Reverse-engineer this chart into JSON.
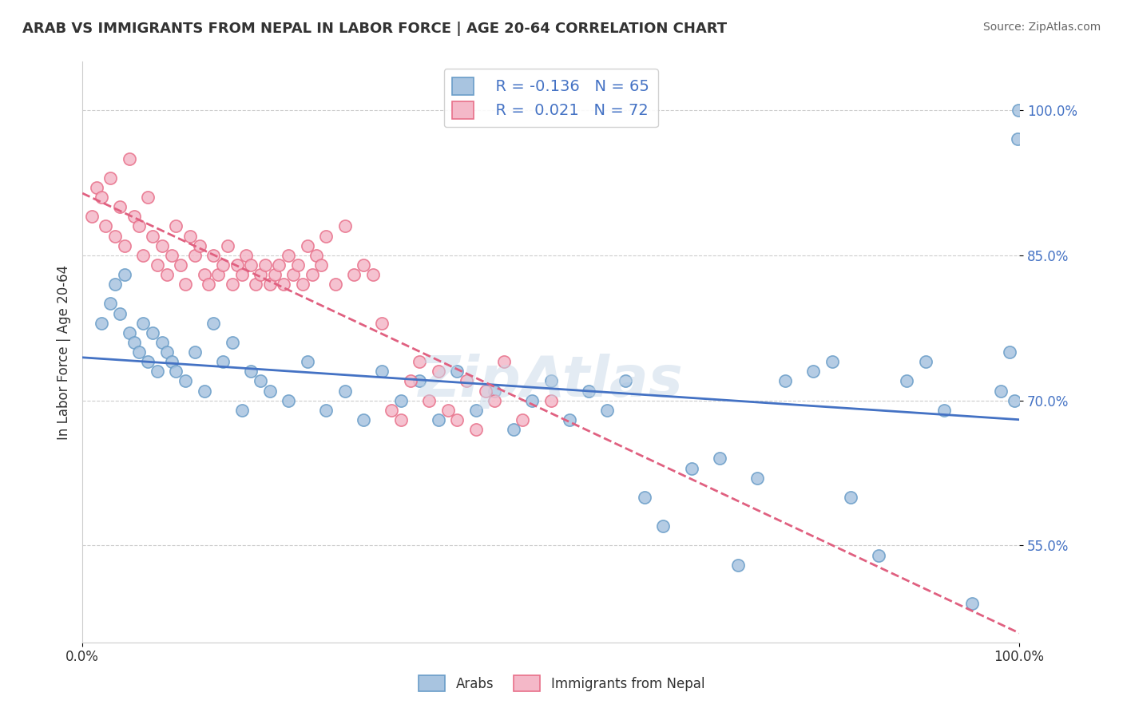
{
  "title": "ARAB VS IMMIGRANTS FROM NEPAL IN LABOR FORCE | AGE 20-64 CORRELATION CHART",
  "source": "Source: ZipAtlas.com",
  "xlabel": "",
  "ylabel": "In Labor Force | Age 20-64",
  "xlim": [
    0.0,
    100.0
  ],
  "ylim": [
    45.0,
    105.0
  ],
  "yticks": [
    55.0,
    70.0,
    85.0,
    100.0
  ],
  "xticks": [
    0.0,
    100.0
  ],
  "xtick_labels": [
    "0.0%",
    "100.0%"
  ],
  "ytick_labels": [
    "55.0%",
    "70.0%",
    "85.0%",
    "100.0%"
  ],
  "arab_R": "-0.136",
  "arab_N": "65",
  "nepal_R": "0.021",
  "nepal_N": "72",
  "arab_color": "#a8c4e0",
  "arab_edge_color": "#6a9dc8",
  "nepal_color": "#f4b8c8",
  "nepal_edge_color": "#e8708a",
  "arab_line_color": "#4472c4",
  "nepal_line_color": "#e06080",
  "watermark": "ZipAtlas",
  "background_color": "#ffffff",
  "grid_color": "#cccccc",
  "arab_x": [
    2.0,
    3.0,
    3.5,
    4.0,
    4.5,
    5.0,
    5.5,
    6.0,
    6.5,
    7.0,
    7.5,
    8.0,
    8.5,
    9.0,
    9.5,
    10.0,
    11.0,
    12.0,
    13.0,
    14.0,
    15.0,
    16.0,
    17.0,
    18.0,
    19.0,
    20.0,
    22.0,
    24.0,
    26.0,
    28.0,
    30.0,
    32.0,
    34.0,
    36.0,
    38.0,
    40.0,
    42.0,
    44.0,
    46.0,
    48.0,
    50.0,
    52.0,
    54.0,
    56.0,
    58.0,
    60.0,
    62.0,
    65.0,
    68.0,
    70.0,
    72.0,
    75.0,
    78.0,
    80.0,
    82.0,
    85.0,
    88.0,
    90.0,
    92.0,
    95.0,
    98.0,
    99.0,
    99.5,
    99.8,
    99.9
  ],
  "arab_y": [
    78.0,
    80.0,
    82.0,
    79.0,
    83.0,
    77.0,
    76.0,
    75.0,
    78.0,
    74.0,
    77.0,
    73.0,
    76.0,
    75.0,
    74.0,
    73.0,
    72.0,
    75.0,
    71.0,
    78.0,
    74.0,
    76.0,
    69.0,
    73.0,
    72.0,
    71.0,
    70.0,
    74.0,
    69.0,
    71.0,
    68.0,
    73.0,
    70.0,
    72.0,
    68.0,
    73.0,
    69.0,
    71.0,
    67.0,
    70.0,
    72.0,
    68.0,
    71.0,
    69.0,
    72.0,
    60.0,
    57.0,
    63.0,
    64.0,
    53.0,
    62.0,
    72.0,
    73.0,
    74.0,
    60.0,
    54.0,
    72.0,
    74.0,
    69.0,
    49.0,
    71.0,
    75.0,
    70.0,
    97.0,
    100.0
  ],
  "nepal_x": [
    1.0,
    1.5,
    2.0,
    2.5,
    3.0,
    3.5,
    4.0,
    4.5,
    5.0,
    5.5,
    6.0,
    6.5,
    7.0,
    7.5,
    8.0,
    8.5,
    9.0,
    9.5,
    10.0,
    10.5,
    11.0,
    11.5,
    12.0,
    12.5,
    13.0,
    13.5,
    14.0,
    14.5,
    15.0,
    15.5,
    16.0,
    16.5,
    17.0,
    17.5,
    18.0,
    18.5,
    19.0,
    19.5,
    20.0,
    20.5,
    21.0,
    21.5,
    22.0,
    22.5,
    23.0,
    23.5,
    24.0,
    24.5,
    25.0,
    25.5,
    26.0,
    27.0,
    28.0,
    29.0,
    30.0,
    31.0,
    32.0,
    33.0,
    34.0,
    35.0,
    36.0,
    37.0,
    38.0,
    39.0,
    40.0,
    41.0,
    42.0,
    43.0,
    44.0,
    45.0,
    47.0,
    50.0
  ],
  "nepal_y": [
    89.0,
    92.0,
    91.0,
    88.0,
    93.0,
    87.0,
    90.0,
    86.0,
    95.0,
    89.0,
    88.0,
    85.0,
    91.0,
    87.0,
    84.0,
    86.0,
    83.0,
    85.0,
    88.0,
    84.0,
    82.0,
    87.0,
    85.0,
    86.0,
    83.0,
    82.0,
    85.0,
    83.0,
    84.0,
    86.0,
    82.0,
    84.0,
    83.0,
    85.0,
    84.0,
    82.0,
    83.0,
    84.0,
    82.0,
    83.0,
    84.0,
    82.0,
    85.0,
    83.0,
    84.0,
    82.0,
    86.0,
    83.0,
    85.0,
    84.0,
    87.0,
    82.0,
    88.0,
    83.0,
    84.0,
    83.0,
    78.0,
    69.0,
    68.0,
    72.0,
    74.0,
    70.0,
    73.0,
    69.0,
    68.0,
    72.0,
    67.0,
    71.0,
    70.0,
    74.0,
    68.0,
    70.0
  ]
}
